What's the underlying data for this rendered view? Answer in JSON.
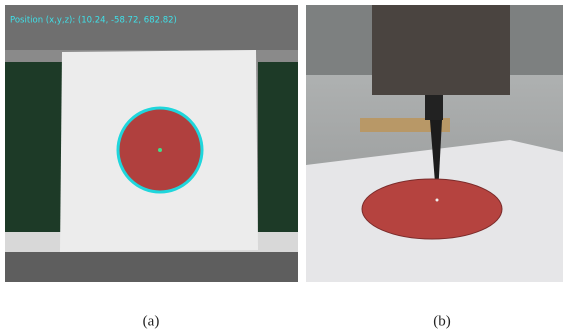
{
  "panels": [
    {
      "overlay": "Position (x,y,z): (10.24, -58.72, 682.82)",
      "caption": "(a)"
    },
    {
      "caption": "(b)"
    }
  ]
}
